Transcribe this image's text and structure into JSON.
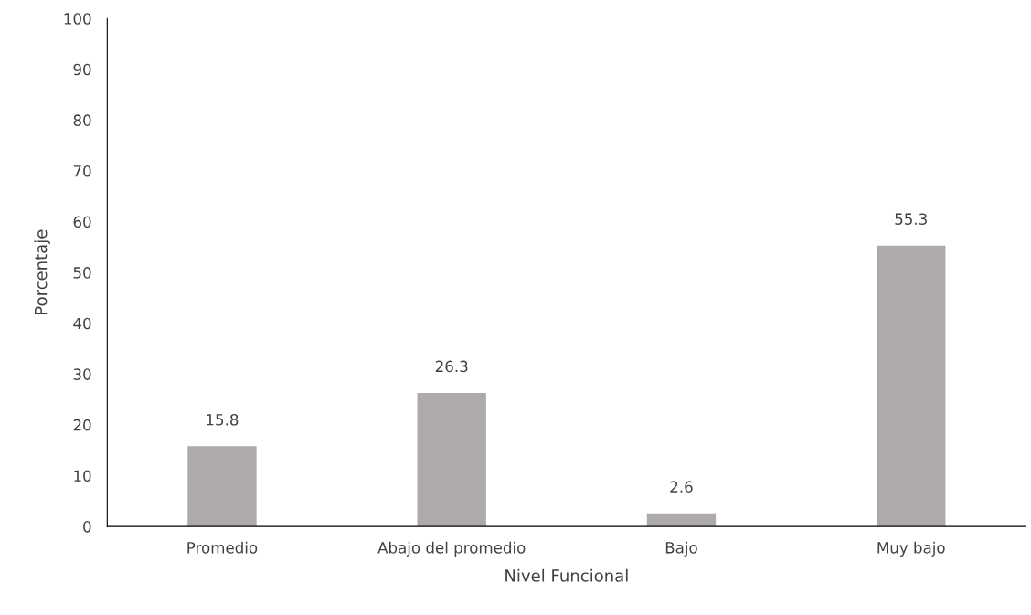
{
  "chart_data": {
    "type": "bar",
    "xlabel": "Nivel Funcional",
    "ylabel": "Porcentaje",
    "categories": [
      "Promedio",
      "Abajo del promedio",
      "Bajo",
      "Muy bajo"
    ],
    "values": [
      15.8,
      26.3,
      2.6,
      55.3
    ],
    "color": "#aeaaaa",
    "ylim": [
      0,
      100
    ],
    "yticks": [
      0,
      10,
      20,
      30,
      40,
      50,
      60,
      70,
      80,
      90,
      100
    ],
    "data_labels": true,
    "grid": false,
    "legend": false
  }
}
